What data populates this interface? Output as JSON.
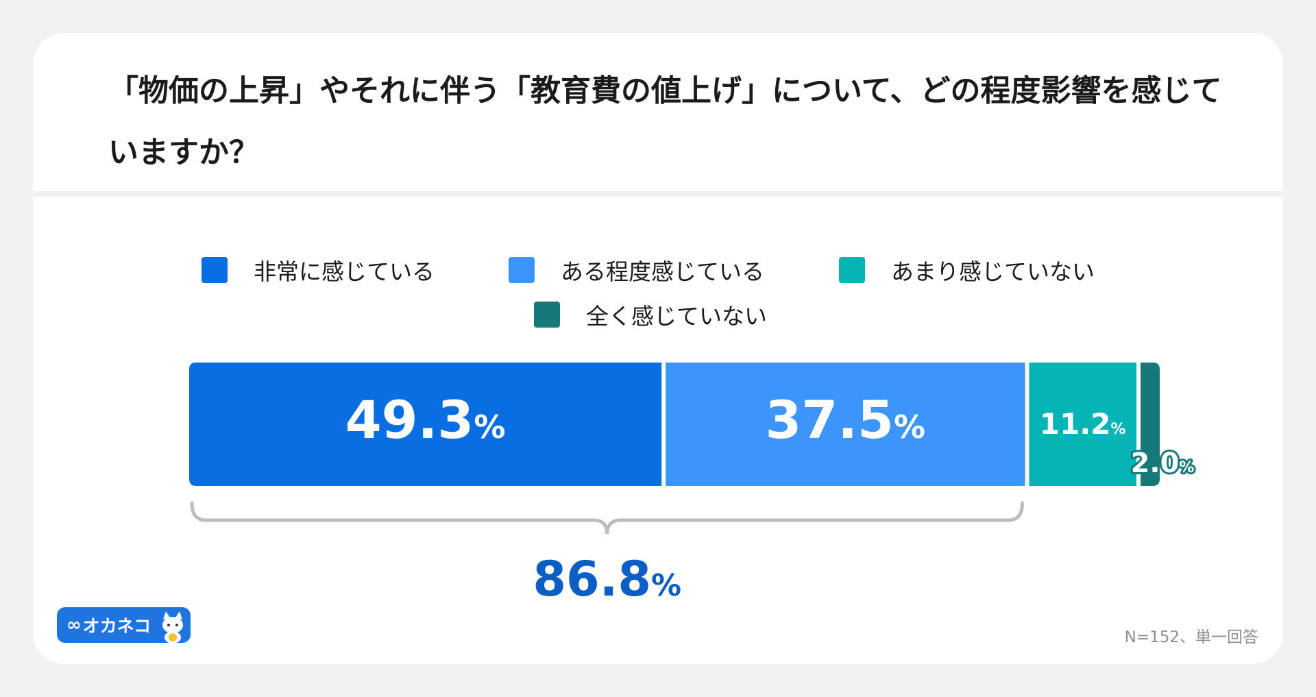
{
  "title": "「物価の上昇」やそれに伴う「教育費の値上げ」について、どの程度影響を感じていますか？",
  "brand": {
    "name": "オカネコ",
    "mark_icon": "infinity-icon",
    "mascot_icon": "cat-mascot-icon"
  },
  "footnote": "N=152、単一回答",
  "colors": {
    "very": "#0a6ee3",
    "somewhat": "#3b95fb",
    "notmuch": "#05b4b4",
    "notatall": "#167878",
    "total": "#0b5fc4",
    "bracket": "#b9bcc1"
  },
  "chart_data": {
    "type": "bar",
    "orientation": "horizontal-stacked-100",
    "categories": [
      "非常に感じている",
      "ある程度感じている",
      "あまり感じていない",
      "全く感じていない"
    ],
    "values": [
      49.3,
      37.5,
      11.2,
      2.0
    ],
    "value_labels": [
      "49.3",
      "37.5",
      "11.2",
      "2.0"
    ],
    "unit": "%",
    "legend_position": "top",
    "annotation": {
      "type": "bracket-sum",
      "covers": [
        "非常に感じている",
        "ある程度感じている"
      ],
      "value": 86.8,
      "label": "86.8"
    }
  }
}
